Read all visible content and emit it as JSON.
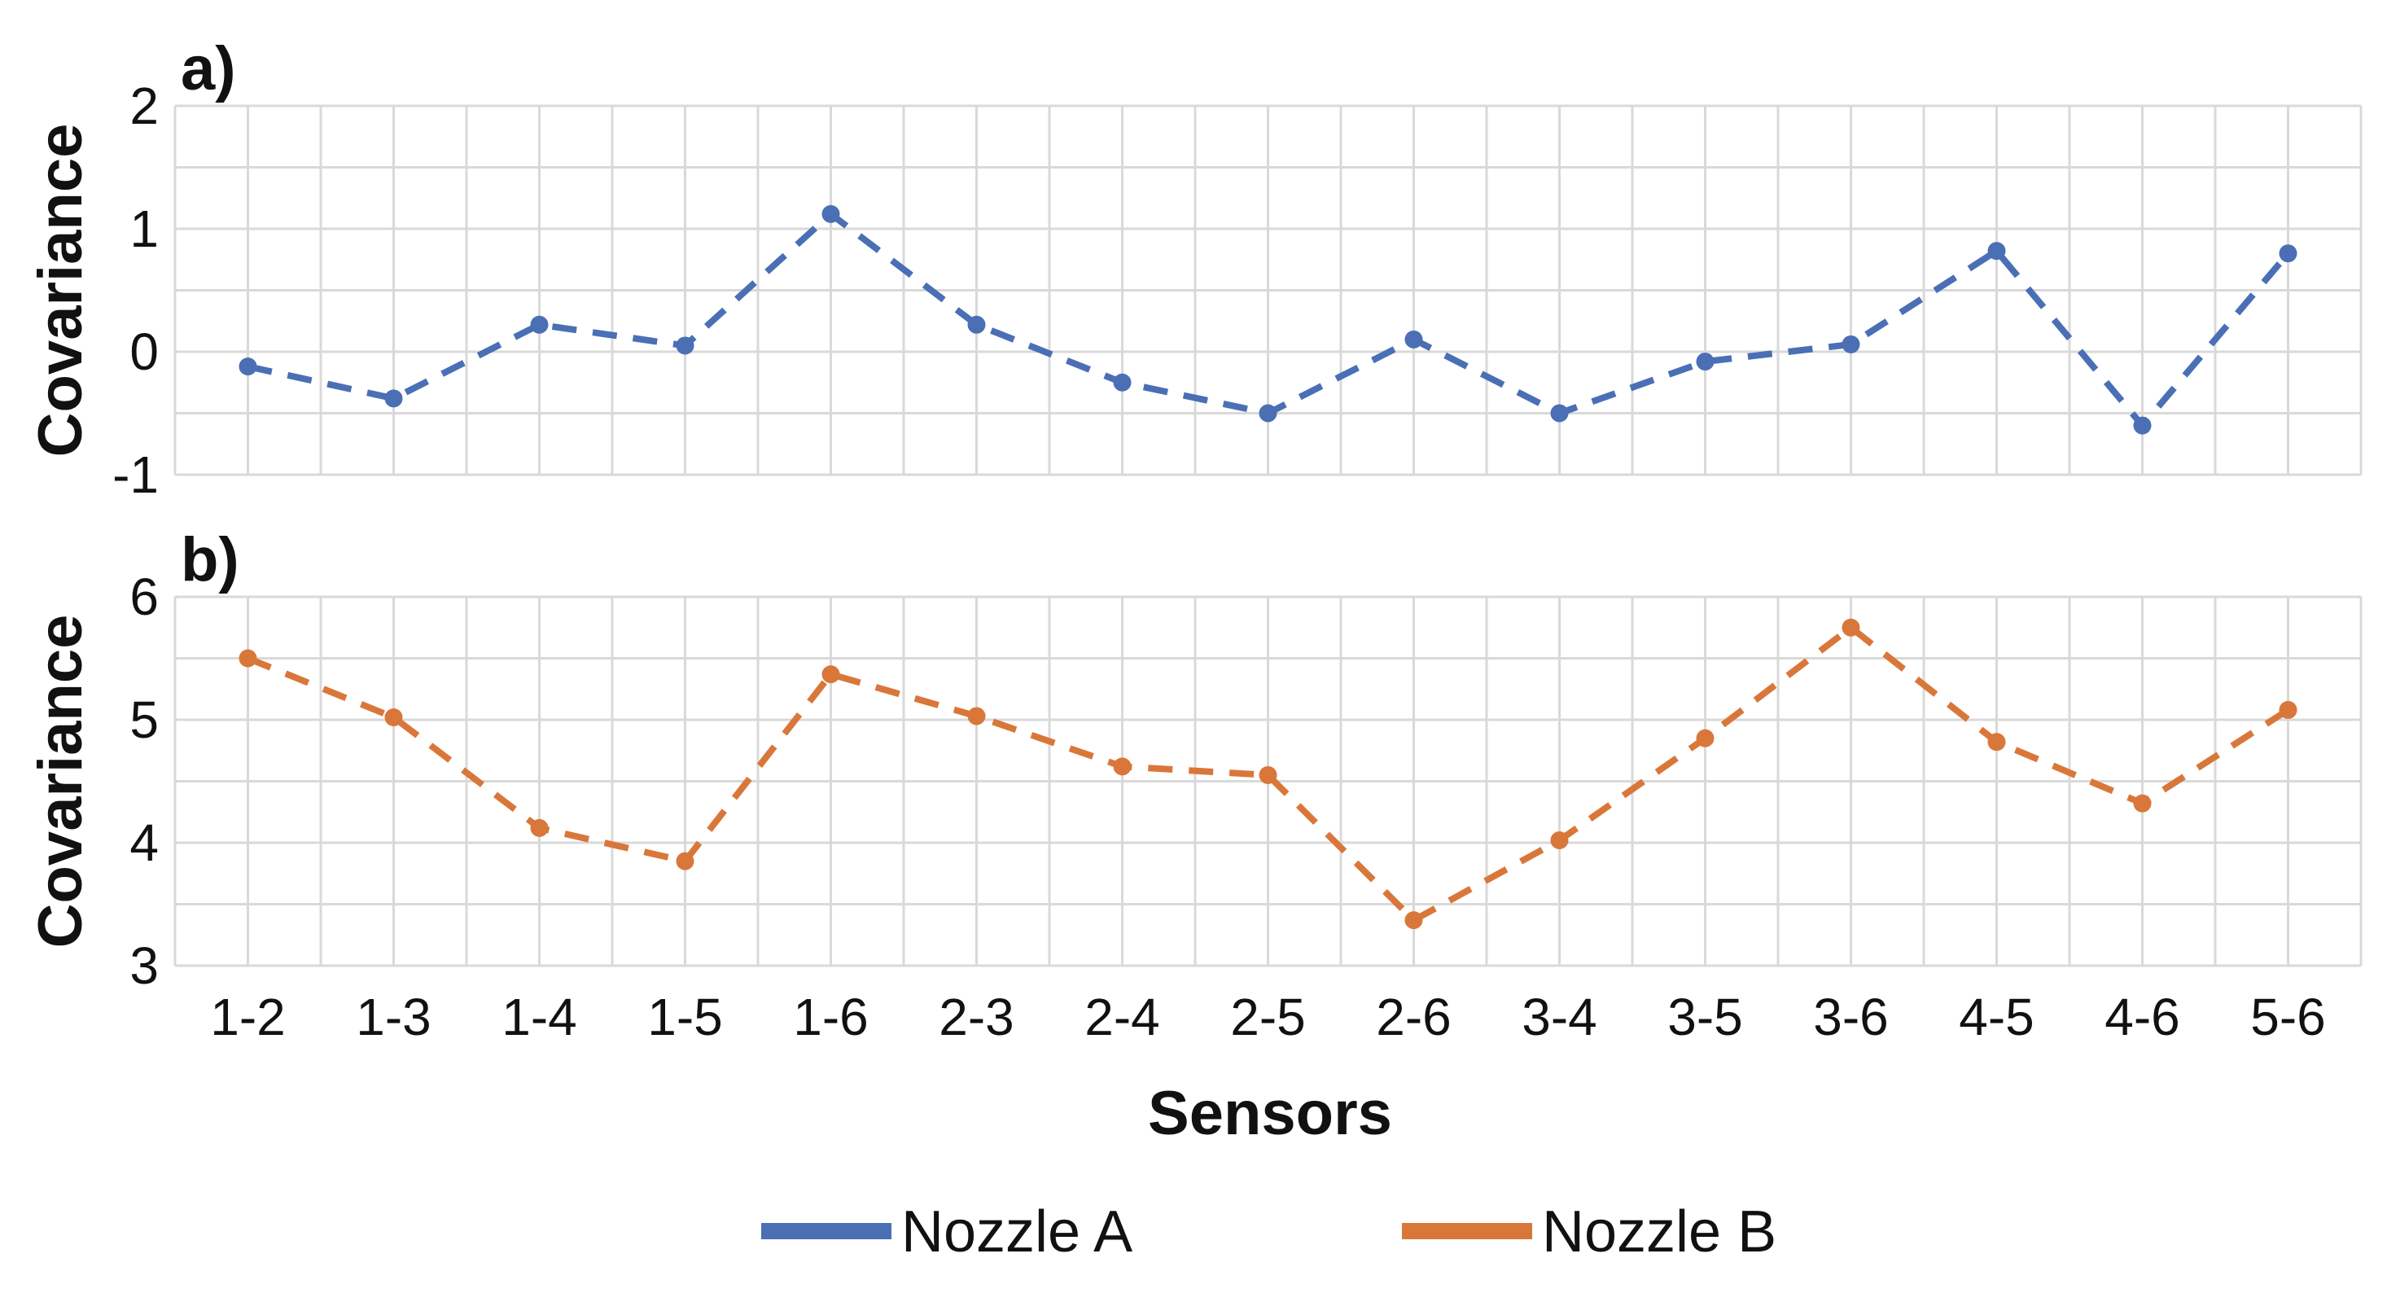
{
  "chart_data": [
    {
      "type": "line",
      "panel_label": "a)",
      "ylabel": "Covariance",
      "xlabel": "",
      "ylim": [
        -1,
        2
      ],
      "yticks": [
        -1,
        0,
        1,
        2
      ],
      "categories": [
        "1-2",
        "1-3",
        "1-4",
        "1-5",
        "1-6",
        "2-3",
        "2-4",
        "2-5",
        "2-6",
        "3-4",
        "3-5",
        "3-6",
        "4-5",
        "4-6",
        "5-6"
      ],
      "grid": true,
      "series": [
        {
          "name": "Nozzle A",
          "color": "#4A6FB5",
          "values": [
            -0.12,
            -0.38,
            0.22,
            0.05,
            1.12,
            0.22,
            -0.25,
            -0.5,
            0.1,
            -0.5,
            -0.08,
            0.06,
            0.82,
            -0.6,
            0.8
          ]
        }
      ]
    },
    {
      "type": "line",
      "panel_label": "b)",
      "ylabel": "Covariance",
      "xlabel": "Sensors",
      "ylim": [
        3,
        6
      ],
      "yticks": [
        3,
        4,
        5,
        6
      ],
      "categories": [
        "1-2",
        "1-3",
        "1-4",
        "1-5",
        "1-6",
        "2-3",
        "2-4",
        "2-5",
        "2-6",
        "3-4",
        "3-5",
        "3-6",
        "4-5",
        "4-6",
        "5-6"
      ],
      "grid": true,
      "series": [
        {
          "name": "Nozzle B",
          "color": "#D9773A",
          "values": [
            5.5,
            5.02,
            4.12,
            3.85,
            5.37,
            5.03,
            4.62,
            4.55,
            3.37,
            4.02,
            4.85,
            5.75,
            4.82,
            4.32,
            5.08
          ]
        }
      ]
    }
  ],
  "legend": {
    "placement": "bottom",
    "items": [
      {
        "label": "Nozzle A",
        "color": "#4A6FB5"
      },
      {
        "label": "Nozzle B",
        "color": "#D9773A"
      }
    ]
  }
}
